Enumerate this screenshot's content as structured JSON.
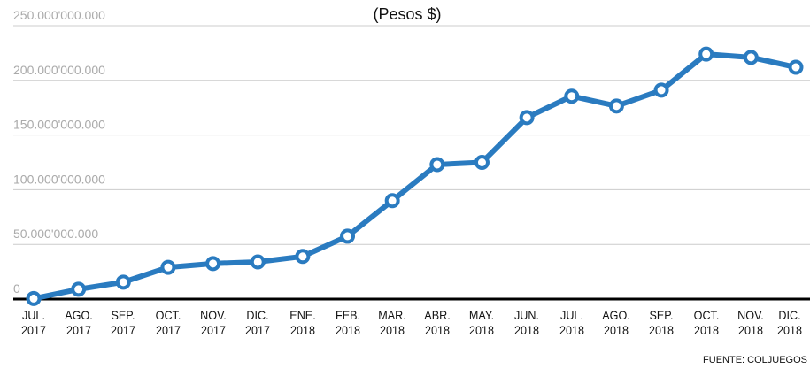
{
  "chart_data": {
    "type": "line",
    "subtitle": "(Pesos $)",
    "categories": [
      "JUL. 2017",
      "AGO. 2017",
      "SEP. 2017",
      "OCT. 2017",
      "NOV. 2017",
      "DIC. 2017",
      "ENE. 2018",
      "FEB. 2018",
      "MAR. 2018",
      "ABR. 2018",
      "MAY. 2018",
      "JUN. 2018",
      "JUL. 2018",
      "AGO. 2018",
      "SEP. 2018",
      "OCT. 2018",
      "NOV. 2018",
      "DIC. 2018"
    ],
    "series": [
      {
        "color": "#2a7bc0",
        "values": [
          500000000,
          9000000000,
          15500000000,
          29000000000,
          32500000000,
          34000000000,
          39000000000,
          57500000000,
          90000000000,
          123000000000,
          125000000000,
          166000000000,
          185500000000,
          176500000000,
          191000000000,
          224000000000,
          221000000000,
          212000000000
        ]
      }
    ],
    "ylim": [
      0,
      250000000000
    ],
    "yticks": [
      0,
      {
        "value": 50000000000,
        "label": "50.000'000.000"
      },
      {
        "value": 100000000000,
        "label": "100.000'000.000"
      },
      {
        "value": 150000000000,
        "label": "150.000'000.000"
      },
      {
        "value": 200000000000,
        "label": "200.000'000.000"
      },
      {
        "value": 250000000000,
        "label": "250.000'000.000"
      }
    ],
    "grid": true,
    "source": "FUENTE: COLJUEGOS"
  }
}
